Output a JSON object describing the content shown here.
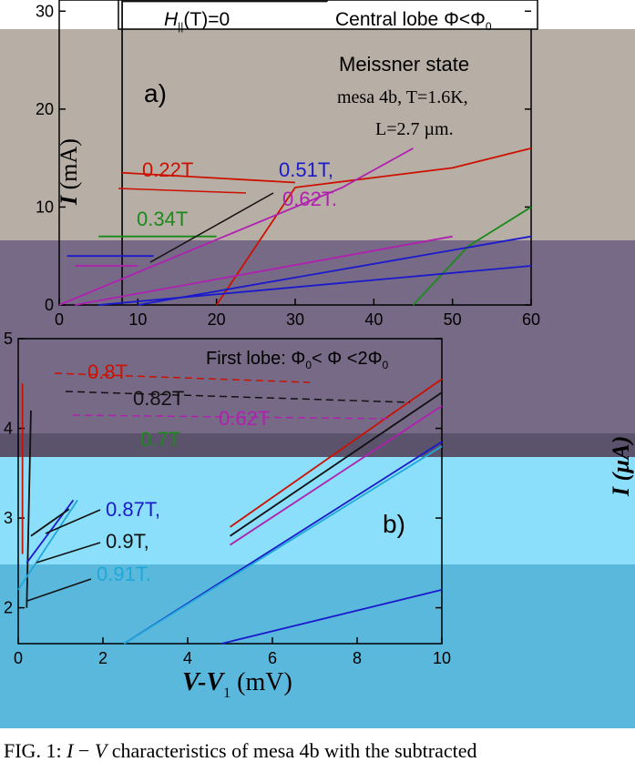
{
  "theme": {
    "band_colors": [
      "#b7aea5",
      "#776a87",
      "#5b526b",
      "#8bdffa",
      "#5ab8dc"
    ],
    "series_colors": {
      "red": "#cc1100",
      "green": "#1a8a1a",
      "blue": "#1a1acc",
      "magenta": "#b020b0",
      "black": "#111111",
      "cyan": "#20a8d8"
    }
  },
  "chart_data": [
    {
      "type": "line",
      "panel": "a)",
      "xlim": [
        0,
        60
      ],
      "ylim": [
        0,
        33
      ],
      "x_ticks": [
        0,
        10,
        20,
        30,
        40,
        50,
        60
      ],
      "y_ticks": [
        0,
        10,
        20,
        30
      ],
      "ylabel_main": "I",
      "ylabel_unit": "(mA)",
      "annotations": [
        "Meissner state",
        "mesa 4b, T=1.6K,",
        "L=2.7 µm."
      ],
      "header_left": "H",
      "header_left_sub": "||",
      "header_left_rest": "(T)=0",
      "header_right": "Central lobe Φ<Φ",
      "header_right_sub": "0",
      "field_labels": [
        {
          "text": "0.22T",
          "color": "red"
        },
        {
          "text": "0.51T,",
          "color": "blue"
        },
        {
          "text": "0.34T",
          "color": "green"
        },
        {
          "text": "0.62T.",
          "color": "magenta"
        }
      ],
      "series": [
        {
          "color": "black",
          "points": [
            [
              8,
              0
            ],
            [
              8,
              31
            ],
            [
              34,
              31
            ],
            [
              36,
              33
            ]
          ]
        },
        {
          "color": "red",
          "points": [
            [
              8,
              13.5
            ],
            [
              30,
              12.5
            ]
          ]
        },
        {
          "color": "red",
          "points": [
            [
              20,
              0
            ],
            [
              30,
              12
            ],
            [
              40,
              13
            ],
            [
              50,
              14
            ],
            [
              60,
              16
            ]
          ]
        },
        {
          "color": "green",
          "points": [
            [
              5,
              7
            ],
            [
              20,
              7
            ]
          ]
        },
        {
          "color": "green",
          "points": [
            [
              45,
              0
            ],
            [
              52,
              6
            ],
            [
              60,
              10
            ]
          ]
        },
        {
          "color": "blue",
          "points": [
            [
              1,
              5
            ],
            [
              12,
              5
            ]
          ]
        },
        {
          "color": "blue",
          "points": [
            [
              10,
              0
            ],
            [
              60,
              7
            ]
          ]
        },
        {
          "color": "blue",
          "points": [
            [
              5,
              0
            ],
            [
              60,
              4
            ]
          ]
        },
        {
          "color": "magenta",
          "points": [
            [
              2,
              4
            ],
            [
              10,
              4
            ]
          ]
        },
        {
          "color": "magenta",
          "points": [
            [
              0,
              0
            ],
            [
              36,
              12
            ],
            [
              45,
              16
            ]
          ]
        },
        {
          "color": "magenta",
          "points": [
            [
              2,
              0
            ],
            [
              50,
              7
            ]
          ]
        }
      ]
    },
    {
      "type": "line",
      "panel": "b)",
      "xlim": [
        0,
        10
      ],
      "ylim": [
        1.6,
        5
      ],
      "x_ticks": [
        0,
        2,
        4,
        6,
        8,
        10
      ],
      "y_ticks": [
        2,
        3,
        4,
        5
      ],
      "xlabel_main": "V-V",
      "xlabel_sub": "1",
      "xlabel_unit": "(mV)",
      "right_label": "I (µA)",
      "title": "First lobe: Φ",
      "title_sub": "0",
      "title_mid": "< Φ <2Φ",
      "title_sub2": "0",
      "field_labels": [
        {
          "text": "0.8T",
          "color": "red"
        },
        {
          "text": "0.82T",
          "color": "black"
        },
        {
          "text": "0.62T",
          "color": "magenta"
        },
        {
          "text": "0.7T",
          "color": "green"
        },
        {
          "text": "0.87T,",
          "color": "blue"
        },
        {
          "text": "0.9T,",
          "color": "black"
        },
        {
          "text": "0.91T.",
          "color": "cyan"
        }
      ],
      "series": [
        {
          "color": "red",
          "points": [
            [
              0.1,
              4.5
            ],
            [
              0.1,
              2.6
            ]
          ]
        },
        {
          "color": "black",
          "points": [
            [
              0.3,
              4.2
            ],
            [
              0.2,
              2.0
            ]
          ]
        },
        {
          "color": "cyan",
          "points": [
            [
              0,
              2.2
            ],
            [
              1.4,
              3.2
            ]
          ]
        },
        {
          "color": "blue",
          "points": [
            [
              0.2,
              2.5
            ],
            [
              1.3,
              3.2
            ]
          ]
        },
        {
          "color": "black",
          "points": [
            [
              0.3,
              2.8
            ],
            [
              1.2,
              3.1
            ]
          ]
        },
        {
          "color": "red",
          "points": [
            [
              5,
              2.9
            ],
            [
              10,
              4.55
            ]
          ]
        },
        {
          "color": "black",
          "points": [
            [
              5,
              2.8
            ],
            [
              10,
              4.4
            ]
          ]
        },
        {
          "color": "magenta",
          "points": [
            [
              5,
              2.7
            ],
            [
              10,
              4.25
            ]
          ]
        },
        {
          "color": "blue",
          "points": [
            [
              2.5,
              1.6
            ],
            [
              10,
              3.85
            ]
          ]
        },
        {
          "color": "cyan",
          "points": [
            [
              2.5,
              1.6
            ],
            [
              10,
              3.8
            ]
          ]
        },
        {
          "color": "blue",
          "points": [
            [
              4.8,
              1.6
            ],
            [
              10,
              2.2
            ]
          ]
        }
      ]
    }
  ],
  "caption": {
    "prefix": "FIG. 1: ",
    "i": "I",
    "mid": " − ",
    "v": "V",
    "rest": " characteristics of mesa 4b with the subtracted"
  }
}
